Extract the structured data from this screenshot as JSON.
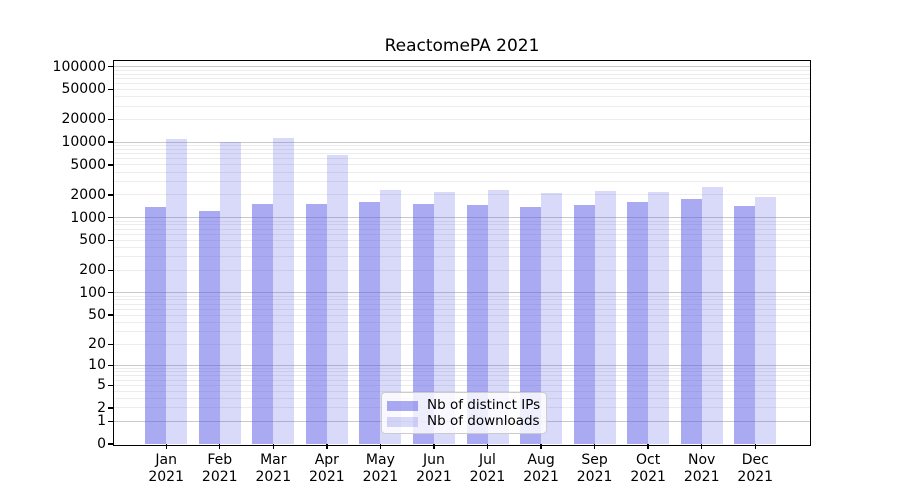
{
  "title": "ReactomePA 2021",
  "legend": {
    "items": [
      {
        "label": "Nb of distinct IPs",
        "color": "#a9a9f1"
      },
      {
        "label": "Nb of downloads",
        "color": "#d8d8f7"
      }
    ]
  },
  "chart_data": {
    "type": "bar",
    "title": "ReactomePA 2021",
    "categories": [
      "Jan 2021",
      "Feb 2021",
      "Mar 2021",
      "Apr 2021",
      "May 2021",
      "Jun 2021",
      "Jul 2021",
      "Aug 2021",
      "Sep 2021",
      "Oct 2021",
      "Nov 2021",
      "Dec 2021"
    ],
    "series": [
      {
        "name": "Nb of distinct IPs",
        "color": "#a9a9f1",
        "values": [
          1400,
          1220,
          1520,
          1520,
          1630,
          1510,
          1490,
          1380,
          1450,
          1630,
          1760,
          1430
        ]
      },
      {
        "name": "Nb of downloads",
        "color": "#d8d8f7",
        "values": [
          11000,
          10200,
          11300,
          6800,
          2330,
          2170,
          2290,
          2110,
          2250,
          2180,
          2510,
          1900
        ]
      }
    ],
    "xlabel": "",
    "ylabel": "",
    "yscale": "log1p",
    "ylim": [
      0,
      100000
    ],
    "ytick_values": [
      0,
      1,
      2,
      5,
      10,
      20,
      50,
      100,
      200,
      500,
      1000,
      2000,
      5000,
      10000,
      20000,
      50000,
      100000
    ],
    "ytick_labels": [
      "0",
      "1",
      "2",
      "5",
      "10",
      "20",
      "50",
      "100",
      "200",
      "500",
      "1000",
      "2000",
      "5000",
      "10000",
      "20000",
      "50000",
      "100000"
    ],
    "grid": "both",
    "legend_position": "lower center"
  }
}
